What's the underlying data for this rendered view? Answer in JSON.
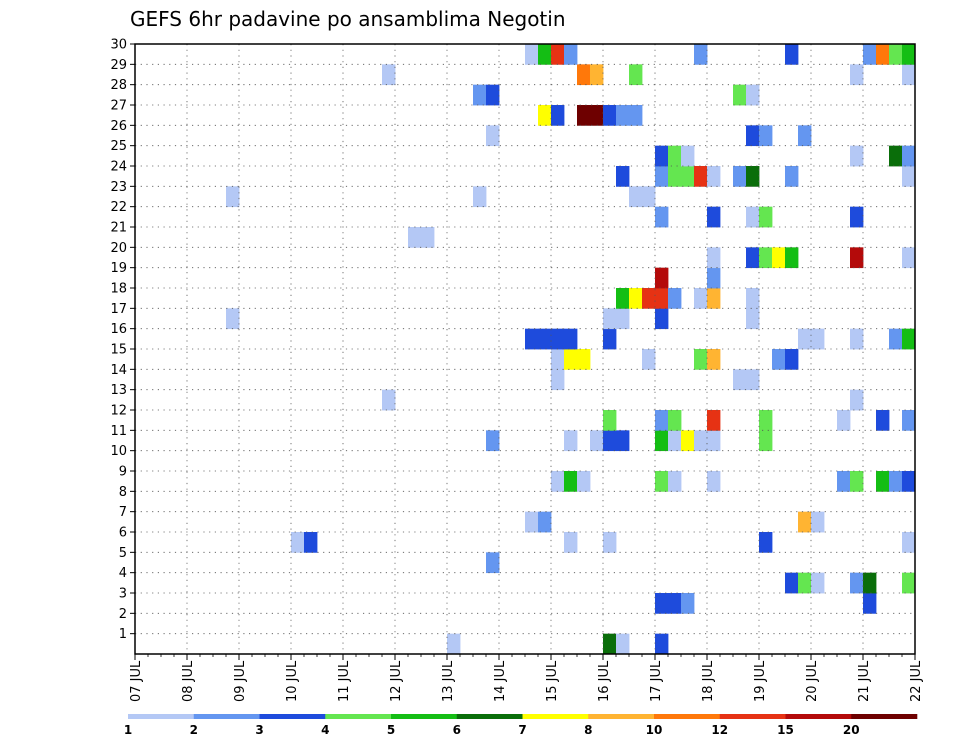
{
  "chart_data": {
    "type": "heatmap",
    "title": "GEFS 6hr padavine po ansamblima Negotin",
    "x_tick_labels": [
      "07 JUL",
      "08 JUL",
      "09 JUL",
      "10 JUL",
      "11 JUL",
      "12 JUL",
      "13 JUL",
      "14 JUL",
      "15 JUL",
      "16 JUL",
      "17 JUL",
      "18 JUL",
      "19 JUL",
      "20 JUL",
      "21 JUL",
      "22 JUL"
    ],
    "y_tick_labels": [
      "1",
      "2",
      "3",
      "4",
      "5",
      "6",
      "7",
      "8",
      "9",
      "10",
      "11",
      "12",
      "13",
      "14",
      "15",
      "16",
      "17",
      "18",
      "19",
      "20",
      "21",
      "22",
      "23",
      "24",
      "25",
      "26",
      "27",
      "28",
      "29",
      "30"
    ],
    "xlim_days_from_07_JUL": [
      0,
      15
    ],
    "ylim": [
      0,
      30
    ],
    "grid": true,
    "colorbar": {
      "boundaries": [
        1,
        2,
        3,
        4,
        5,
        6,
        7,
        8,
        10,
        12,
        15,
        20
      ],
      "labels": [
        "1",
        "2",
        "3",
        "4",
        "5",
        "6",
        "7",
        "8",
        "10",
        "12",
        "15",
        "20"
      ],
      "colors": [
        "#b4c8f5",
        "#6496f0",
        "#1e4bdc",
        "#64e650",
        "#14be14",
        "#0a6e0a",
        "#ffff00",
        "#ffb432",
        "#ff780a",
        "#e63214",
        "#b40a0a",
        "#6e0000"
      ]
    },
    "cells_note": "each cell: [date, member (y), precipitation class index 0-11 matching colorbar colors]",
    "cells": [
      [
        "13 JUL 00Z",
        0,
        0
      ],
      [
        "16 JUL 00Z",
        0,
        5
      ],
      [
        "16 JUL 06Z",
        0,
        0
      ],
      [
        "17 JUL 00Z",
        0,
        2
      ],
      [
        "17 JUL 00Z",
        2,
        2
      ],
      [
        "17 JUL 06Z",
        2,
        2
      ],
      [
        "17 JUL 12Z",
        2,
        1
      ],
      [
        "21 JUL 00Z",
        2,
        2
      ],
      [
        "19 JUL 12Z",
        3,
        2
      ],
      [
        "19 JUL 18Z",
        3,
        3
      ],
      [
        "20 JUL 00Z",
        3,
        0
      ],
      [
        "20 JUL 18Z",
        3,
        1
      ],
      [
        "21 JUL 00Z",
        3,
        5
      ],
      [
        "21 JUL 18Z",
        3,
        3
      ],
      [
        "13 JUL 18Z",
        4,
        1
      ],
      [
        "10 JUL 00Z",
        5,
        0
      ],
      [
        "10 JUL 06Z",
        5,
        2
      ],
      [
        "15 JUL 06Z",
        5,
        0
      ],
      [
        "16 JUL 00Z",
        5,
        0
      ],
      [
        "19 JUL 00Z",
        5,
        2
      ],
      [
        "21 JUL 18Z",
        5,
        0
      ],
      [
        "14 JUL 12Z",
        6,
        0
      ],
      [
        "14 JUL 18Z",
        6,
        1
      ],
      [
        "19 JUL 18Z",
        6,
        7
      ],
      [
        "20 JUL 00Z",
        6,
        0
      ],
      [
        "15 JUL 00Z",
        8,
        0
      ],
      [
        "15 JUL 06Z",
        8,
        4
      ],
      [
        "15 JUL 12Z",
        8,
        0
      ],
      [
        "17 JUL 00Z",
        8,
        3
      ],
      [
        "17 JUL 06Z",
        8,
        0
      ],
      [
        "18 JUL 00Z",
        8,
        0
      ],
      [
        "20 JUL 12Z",
        8,
        1
      ],
      [
        "20 JUL 18Z",
        8,
        3
      ],
      [
        "21 JUL 06Z",
        8,
        4
      ],
      [
        "21 JUL 12Z",
        8,
        1
      ],
      [
        "21 JUL 18Z",
        8,
        2
      ],
      [
        "13 JUL 18Z",
        10,
        1
      ],
      [
        "15 JUL 06Z",
        10,
        0
      ],
      [
        "15 JUL 18Z",
        10,
        0
      ],
      [
        "16 JUL 00Z",
        10,
        2
      ],
      [
        "16 JUL 06Z",
        10,
        2
      ],
      [
        "17 JUL 00Z",
        10,
        4
      ],
      [
        "17 JUL 06Z",
        10,
        0
      ],
      [
        "17 JUL 12Z",
        10,
        6
      ],
      [
        "17 JUL 18Z",
        10,
        0
      ],
      [
        "18 JUL 00Z",
        10,
        0
      ],
      [
        "19 JUL 00Z",
        10,
        3
      ],
      [
        "16 JUL 00Z",
        11,
        3
      ],
      [
        "17 JUL 00Z",
        11,
        1
      ],
      [
        "17 JUL 06Z",
        11,
        3
      ],
      [
        "18 JUL 00Z",
        11,
        9
      ],
      [
        "19 JUL 00Z",
        11,
        3
      ],
      [
        "20 JUL 12Z",
        11,
        0
      ],
      [
        "21 JUL 06Z",
        11,
        2
      ],
      [
        "21 JUL 18Z",
        11,
        1
      ],
      [
        "11 JUL 18Z",
        12,
        0
      ],
      [
        "20 JUL 18Z",
        12,
        0
      ],
      [
        "15 JUL 00Z",
        13,
        0
      ],
      [
        "18 JUL 12Z",
        13,
        0
      ],
      [
        "18 JUL 18Z",
        13,
        0
      ],
      [
        "15 JUL 00Z",
        14,
        0
      ],
      [
        "15 JUL 06Z",
        14,
        6
      ],
      [
        "15 JUL 12Z",
        14,
        6
      ],
      [
        "16 JUL 18Z",
        14,
        0
      ],
      [
        "17 JUL 18Z",
        14,
        3
      ],
      [
        "18 JUL 00Z",
        14,
        7
      ],
      [
        "19 JUL 06Z",
        14,
        1
      ],
      [
        "19 JUL 12Z",
        14,
        2
      ],
      [
        "14 JUL 12Z",
        15,
        2
      ],
      [
        "14 JUL 18Z",
        15,
        2
      ],
      [
        "15 JUL 00Z",
        15,
        2
      ],
      [
        "15 JUL 06Z",
        15,
        2
      ],
      [
        "16 JUL 00Z",
        15,
        2
      ],
      [
        "19 JUL 18Z",
        15,
        0
      ],
      [
        "20 JUL 00Z",
        15,
        0
      ],
      [
        "20 JUL 18Z",
        15,
        0
      ],
      [
        "21 JUL 12Z",
        15,
        1
      ],
      [
        "21 JUL 18Z",
        15,
        4
      ],
      [
        "08 JUL 18Z",
        16,
        0
      ],
      [
        "16 JUL 00Z",
        16,
        0
      ],
      [
        "16 JUL 06Z",
        16,
        0
      ],
      [
        "17 JUL 00Z",
        16,
        2
      ],
      [
        "17 JUL 00Z",
        17,
        9
      ],
      [
        "16 JUL 06Z",
        17,
        4
      ],
      [
        "16 JUL 12Z",
        17,
        6
      ],
      [
        "16 JUL 18Z",
        17,
        9
      ],
      [
        "17 JUL 00Z",
        18,
        10
      ],
      [
        "17 JUL 06Z",
        17,
        1
      ],
      [
        "17 JUL 18Z",
        17,
        0
      ],
      [
        "18 JUL 00Z",
        17,
        7
      ],
      [
        "18 JUL 18Z",
        17,
        0
      ],
      [
        "18 JUL 18Z",
        16,
        0
      ],
      [
        "18 JUL 00Z",
        18,
        1
      ],
      [
        "18 JUL 00Z",
        19,
        0
      ],
      [
        "18 JUL 18Z",
        19,
        2
      ],
      [
        "19 JUL 00Z",
        19,
        3
      ],
      [
        "19 JUL 06Z",
        19,
        6
      ],
      [
        "19 JUL 12Z",
        19,
        4
      ],
      [
        "20 JUL 18Z",
        19,
        10
      ],
      [
        "21 JUL 18Z",
        19,
        0
      ],
      [
        "12 JUL 06Z",
        20,
        0
      ],
      [
        "12 JUL 12Z",
        20,
        0
      ],
      [
        "17 JUL 00Z",
        21,
        1
      ],
      [
        "18 JUL 00Z",
        21,
        2
      ],
      [
        "18 JUL 18Z",
        21,
        0
      ],
      [
        "19 JUL 00Z",
        21,
        3
      ],
      [
        "20 JUL 18Z",
        21,
        2
      ],
      [
        "08 JUL 18Z",
        22,
        0
      ],
      [
        "13 JUL 12Z",
        22,
        0
      ],
      [
        "16 JUL 12Z",
        22,
        0
      ],
      [
        "16 JUL 18Z",
        22,
        0
      ],
      [
        "16 JUL 06Z",
        23,
        2
      ],
      [
        "17 JUL 00Z",
        23,
        1
      ],
      [
        "17 JUL 06Z",
        23,
        3
      ],
      [
        "17 JUL 12Z",
        23,
        3
      ],
      [
        "17 JUL 18Z",
        23,
        9
      ],
      [
        "18 JUL 00Z",
        23,
        0
      ],
      [
        "18 JUL 12Z",
        23,
        1
      ],
      [
        "18 JUL 18Z",
        23,
        5
      ],
      [
        "19 JUL 12Z",
        23,
        1
      ],
      [
        "21 JUL 18Z",
        23,
        0
      ],
      [
        "17 JUL 00Z",
        24,
        2
      ],
      [
        "17 JUL 06Z",
        24,
        3
      ],
      [
        "17 JUL 12Z",
        24,
        0
      ],
      [
        "20 JUL 18Z",
        24,
        0
      ],
      [
        "21 JUL 12Z",
        24,
        5
      ],
      [
        "21 JUL 18Z",
        24,
        1
      ],
      [
        "13 JUL 18Z",
        25,
        0
      ],
      [
        "18 JUL 18Z",
        25,
        2
      ],
      [
        "19 JUL 00Z",
        25,
        1
      ],
      [
        "19 JUL 18Z",
        25,
        1
      ],
      [
        "14 JUL 18Z",
        26,
        6
      ],
      [
        "15 JUL 00Z",
        26,
        2
      ],
      [
        "15 JUL 12Z",
        26,
        11
      ],
      [
        "15 JUL 18Z",
        26,
        11
      ],
      [
        "16 JUL 00Z",
        26,
        2
      ],
      [
        "16 JUL 06Z",
        26,
        1
      ],
      [
        "16 JUL 12Z",
        26,
        1
      ],
      [
        "13 JUL 12Z",
        27,
        1
      ],
      [
        "13 JUL 18Z",
        27,
        2
      ],
      [
        "18 JUL 12Z",
        27,
        3
      ],
      [
        "18 JUL 18Z",
        27,
        0
      ],
      [
        "11 JUL 18Z",
        28,
        0
      ],
      [
        "15 JUL 12Z",
        28,
        8
      ],
      [
        "15 JUL 18Z",
        28,
        7
      ],
      [
        "16 JUL 12Z",
        28,
        3
      ],
      [
        "20 JUL 18Z",
        28,
        0
      ],
      [
        "21 JUL 18Z",
        28,
        0
      ],
      [
        "14 JUL 12Z",
        29,
        0
      ],
      [
        "14 JUL 18Z",
        29,
        4
      ],
      [
        "15 JUL 00Z",
        29,
        9
      ],
      [
        "15 JUL 06Z",
        29,
        1
      ],
      [
        "17 JUL 18Z",
        29,
        1
      ],
      [
        "19 JUL 12Z",
        29,
        2
      ],
      [
        "21 JUL 00Z",
        29,
        1
      ],
      [
        "21 JUL 06Z",
        29,
        8
      ],
      [
        "21 JUL 12Z",
        29,
        3
      ],
      [
        "21 JUL 18Z",
        29,
        4
      ]
    ]
  }
}
